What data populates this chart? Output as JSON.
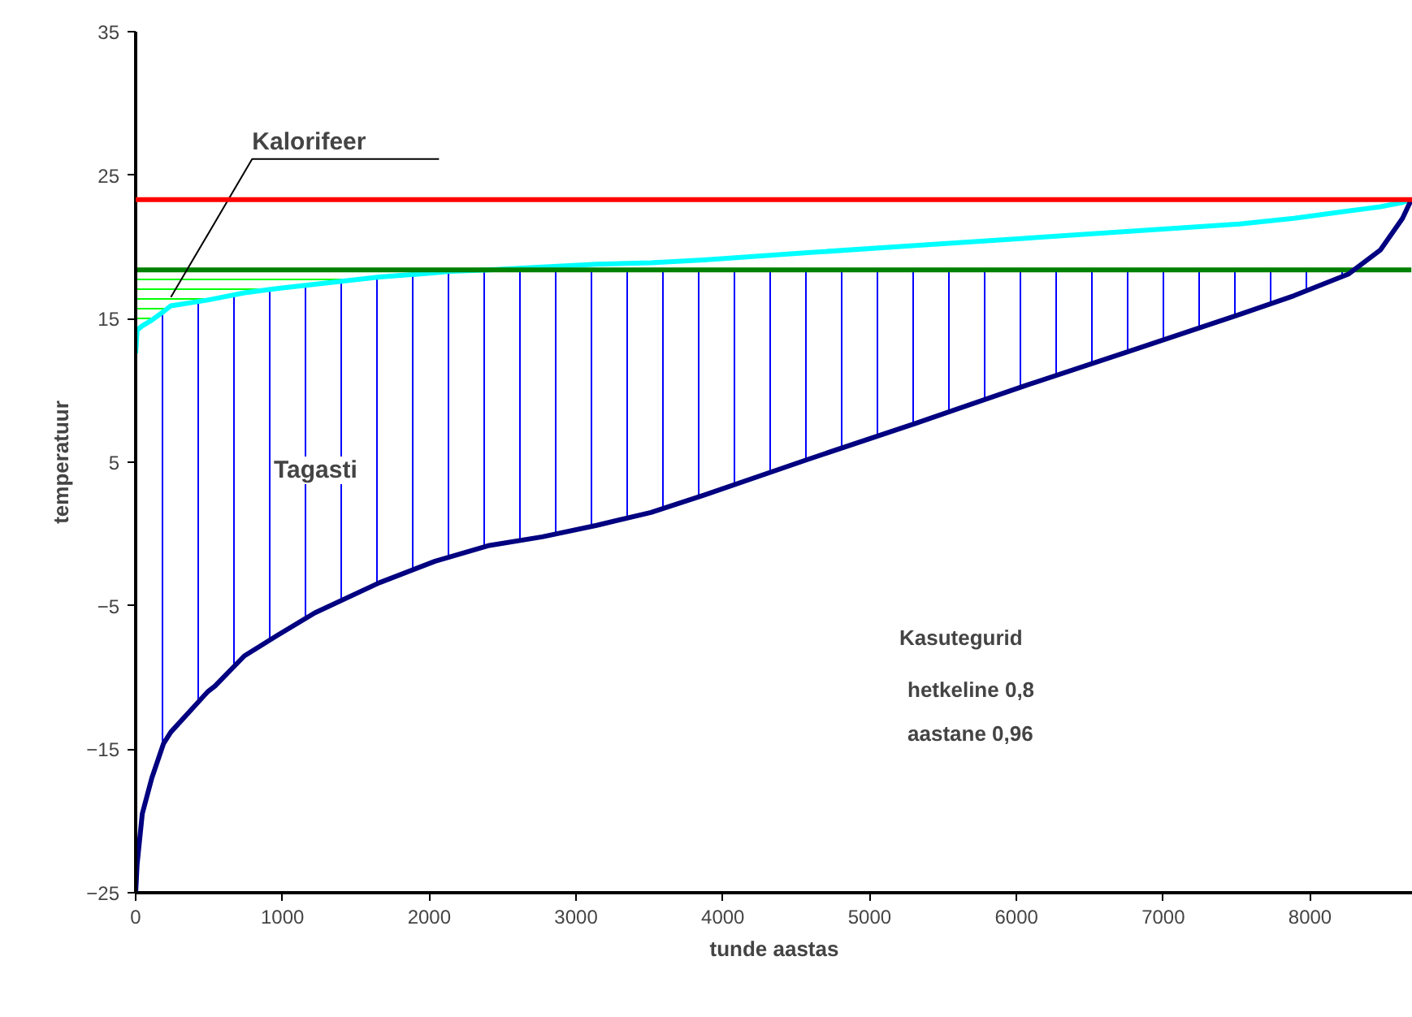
{
  "chart_data": {
    "type": "line",
    "xlabel": "tunde aastas",
    "ylabel": "temperatuur",
    "x": [
      0,
      10,
      45,
      110,
      190,
      240,
      490,
      540,
      740,
      960,
      1220,
      1660,
      2040,
      2140,
      2410,
      2770,
      3140,
      3510,
      3870,
      4580,
      5310,
      6050,
      6790,
      7520,
      7890,
      8260,
      8480,
      8630,
      8690
    ],
    "series": [
      {
        "color": "#00ffff",
        "values": [
          12.6,
          14.2,
          14.5,
          14.9,
          15.5,
          15.9,
          16.3,
          16.4,
          16.8,
          17.1,
          17.4,
          17.9,
          18.2,
          18.3,
          18.4,
          18.6,
          18.8,
          18.9,
          19.1,
          19.6,
          20.1,
          20.6,
          21.1,
          21.6,
          22,
          22.5,
          22.8,
          23.1,
          23.3
        ]
      },
      {
        "color": "#008000",
        "values": [
          18.4,
          18.4,
          18.4,
          18.4,
          18.4,
          18.4,
          18.4,
          18.4,
          18.4,
          18.4,
          18.4,
          18.4,
          18.4,
          18.4,
          18.4,
          18.4,
          18.4,
          18.4,
          18.4,
          18.4,
          18.4,
          18.4,
          18.4,
          18.4,
          18.4,
          18.4,
          18.4,
          18.4,
          18.4
        ],
        "lower": [
          12.6,
          14.2,
          14.5,
          14.9,
          15.5,
          15.9,
          16.3,
          16.4,
          16.8,
          17.1,
          17.4,
          17.9,
          18.2,
          18.3,
          null,
          null,
          null,
          null,
          null,
          null,
          null,
          null,
          null,
          null,
          null,
          null,
          null,
          null,
          null
        ],
        "upper": [
          18.4,
          18.4,
          18.4,
          18.4,
          18.4,
          18.4,
          18.4,
          18.4,
          18.4,
          18.4,
          18.4,
          18.4,
          18.4,
          18.4,
          null,
          null,
          null,
          null,
          null,
          null,
          null,
          null,
          null,
          null,
          null,
          null,
          null,
          null,
          null
        ]
      },
      {
        "color": "#000080",
        "values": [
          -25,
          -23,
          -19.5,
          -17,
          -14.6,
          -13.8,
          -11,
          -10.6,
          -8.5,
          -7.1,
          -5.5,
          -3.4,
          -1.9,
          -1.6,
          -0.8,
          -0.2,
          0.6,
          1.5,
          2.7,
          5.2,
          7.7,
          10.3,
          12.8,
          15.3,
          16.6,
          18.1,
          19.8,
          22,
          23.3
        ],
        "lower": [
          -25,
          -23,
          -19.5,
          -17,
          -14.6,
          -13.8,
          -11,
          -10.6,
          -8.5,
          -7.1,
          -5.5,
          -3.4,
          -1.9,
          -1.6,
          -0.8,
          -0.2,
          0.6,
          1.5,
          2.7,
          5.2,
          7.7,
          10.3,
          12.8,
          15.3,
          16.6,
          18.1,
          null,
          null,
          null
        ],
        "upper": [
          12.6,
          14.2,
          14.5,
          14.9,
          15.5,
          15.9,
          16.3,
          16.4,
          16.8,
          17.1,
          17.4,
          17.9,
          18.2,
          18.3,
          18.4,
          18.4,
          18.4,
          18.4,
          18.4,
          18.4,
          18.4,
          18.4,
          18.4,
          18.4,
          18.4,
          18.4,
          null,
          null,
          null
        ]
      }
    ],
    "ref_lines": [
      {
        "axis": "y",
        "value": 23.3,
        "color": "#ff0000"
      }
    ],
    "annotations": [
      {
        "text": "Kalorifeer",
        "x": 240,
        "y": 16.5
      },
      "Tagasti",
      "Kasutegurid",
      "hetkeline   0,8",
      "aastane     0,96"
    ],
    "xlim": [
      0,
      8700
    ],
    "ylim": [
      -25,
      35
    ],
    "xticks": [
      0,
      1000,
      2000,
      3000,
      4000,
      5000,
      6000,
      7000,
      8000
    ],
    "yticks": [
      -25,
      -15,
      -5,
      5,
      15,
      25,
      35
    ],
    "grid": false,
    "marker": "none",
    "line_style": "solid"
  }
}
